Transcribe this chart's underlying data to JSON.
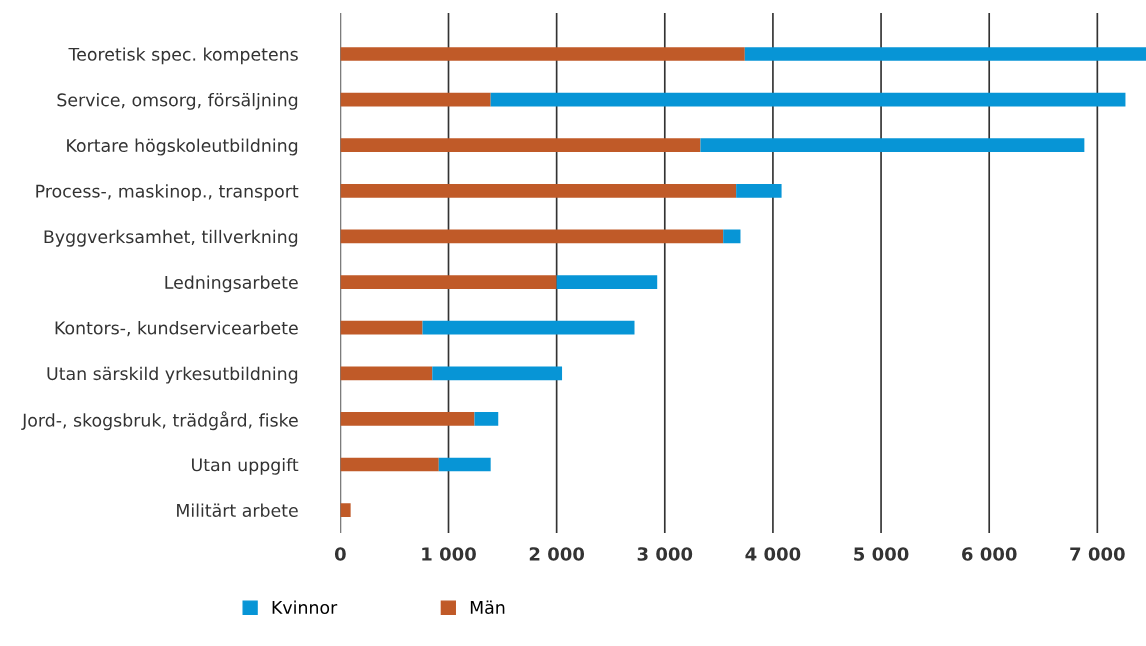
{
  "chart_data": {
    "type": "bar",
    "orientation": "horizontal",
    "stacked": true,
    "categories": [
      "Teoretisk spec. kompetens",
      "Service, omsorg, försäljning",
      "Kortare högskoleutbildning",
      "Process-, maskinop., transport",
      "Byggverksamhet, tillverkning",
      "Ledningsarbete",
      "Kontors-, kundservicearbete",
      "Utan särskild yrkesutbildning",
      "Jord-, skogsbruk, trädgård, fiske",
      "Utan uppgift",
      "Militärt arbete"
    ],
    "series": [
      {
        "name": "Män",
        "color": "#c05a28",
        "values": [
          3740,
          1390,
          3330,
          3660,
          3540,
          2000,
          760,
          850,
          1240,
          910,
          95
        ]
      },
      {
        "name": "Kvinnor",
        "color": "#0795d6",
        "values": [
          3710,
          5870,
          3550,
          420,
          160,
          930,
          1960,
          1200,
          220,
          480,
          0
        ]
      }
    ],
    "xlim": [
      0,
      7450
    ],
    "xticks": [
      0,
      {
        "value": 1000,
        "label": "1 000"
      },
      {
        "value": 2000,
        "label": "2 000"
      },
      {
        "value": 3000,
        "label": "3 000"
      },
      {
        "value": 4000,
        "label": "4 000"
      },
      {
        "value": 5000,
        "label": "5 000"
      },
      {
        "value": 6000,
        "label": "6 000"
      },
      {
        "value": 7000,
        "label": "7 000"
      }
    ],
    "grid": "x",
    "legend": "bottom"
  }
}
